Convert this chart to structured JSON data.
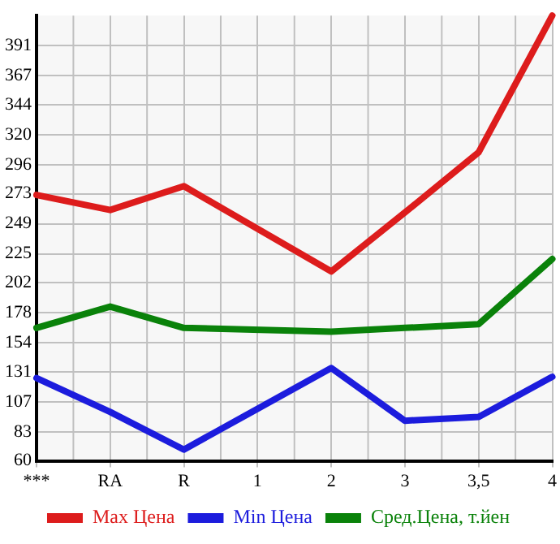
{
  "chart_data": {
    "type": "line",
    "categories": [
      "***",
      "RA",
      "R",
      "1",
      "2",
      "3",
      "3,5",
      "4"
    ],
    "series": [
      {
        "name": "Max Цена",
        "color": "#dd1c1c",
        "values": [
          272,
          260,
          279,
          null,
          211,
          258,
          306,
          415
        ]
      },
      {
        "name": "Min Цена",
        "color": "#1c1cdd",
        "values": [
          126,
          99,
          69,
          null,
          134,
          92,
          95,
          127
        ]
      },
      {
        "name": "Сред.Цена, т.йен",
        "color": "#0a820a",
        "values": [
          166,
          183,
          166,
          null,
          163,
          166,
          169,
          221
        ]
      }
    ],
    "ylim": [
      60,
      415
    ],
    "yticks": [
      60,
      83,
      107,
      131,
      154,
      178,
      202,
      225,
      249,
      273,
      296,
      320,
      344,
      367,
      391
    ],
    "grid": true,
    "legend": "bottom",
    "marker": "none",
    "line_style": "solid"
  }
}
